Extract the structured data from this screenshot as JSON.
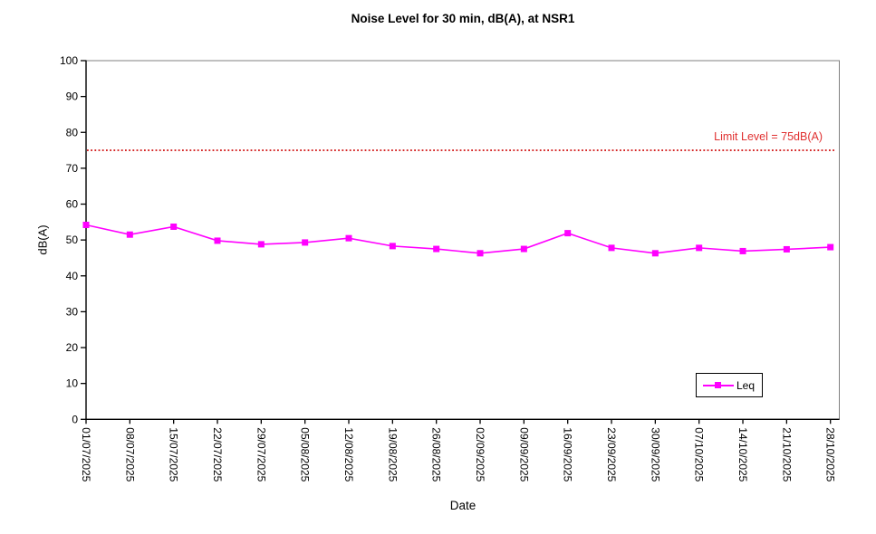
{
  "chart_data": {
    "type": "line",
    "title": "Noise Level for 30 min, dB(A), at NSR1",
    "xlabel": "Date",
    "ylabel": "dB(A)",
    "ylim": [
      0,
      100
    ],
    "y_ticks": [
      0,
      10,
      20,
      30,
      40,
      50,
      60,
      70,
      80,
      90,
      100
    ],
    "grid": false,
    "categories": [
      "01/07/2025",
      "08/07/2025",
      "15/07/2025",
      "22/07/2025",
      "29/07/2025",
      "05/08/2025",
      "12/08/2025",
      "19/08/2025",
      "26/08/2025",
      "02/09/2025",
      "09/09/2025",
      "16/09/2025",
      "23/09/2025",
      "30/09/2025",
      "07/10/2025",
      "14/10/2025",
      "21/10/2025",
      "28/10/2025"
    ],
    "series": [
      {
        "name": "Leq",
        "color": "#FF00FF",
        "marker": "square",
        "values": [
          54.2,
          51.5,
          53.7,
          49.8,
          48.8,
          49.3,
          50.5,
          48.3,
          47.5,
          46.3,
          47.5,
          51.9,
          47.8,
          46.3,
          47.8,
          46.9,
          47.4,
          48.0
        ]
      }
    ],
    "limit_line": {
      "label": "Limit Level = 75dB(A)",
      "value": 75,
      "color": "#D42222",
      "text_color": "#E03030"
    },
    "legend": {
      "position": "bottom-right",
      "entries": [
        "Leq"
      ]
    },
    "colors": {
      "plot_border": "#808080",
      "axis": "#000000",
      "background": "#FFFFFF"
    }
  }
}
